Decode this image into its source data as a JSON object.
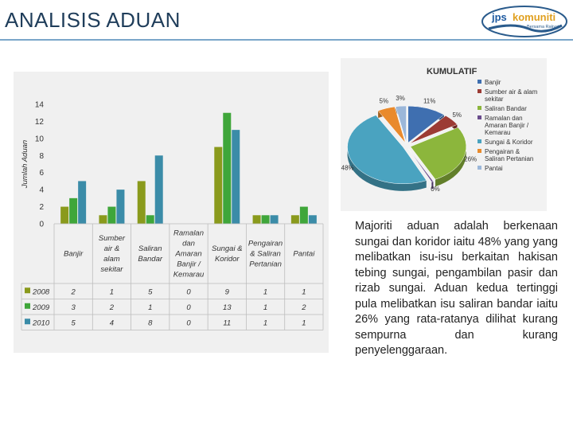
{
  "slide": {
    "title": "ANALISIS ADUAN",
    "logo_text_a": "jps",
    "logo_text_b": "komuniti",
    "logo_subtitle": "Bersama Rakyat",
    "paragraph": "Majoriti aduan adalah berkenaan sungai dan koridor iaitu 48% yang yang melibatkan isu-isu berkaitan hakisan tebing sungai, pengambilan pasir dan rizab sungai. Aduan kedua tertinggi pula melibatkan isu saliran bandar iaitu 26% yang rata-ratanya dilihat kurang sempurna dan kurang penyelenggaraan."
  },
  "chart_data": [
    {
      "type": "bar",
      "ylabel": "Jumlah Aduan",
      "ylim": [
        0,
        14
      ],
      "yticks": [
        0,
        2,
        4,
        6,
        8,
        10,
        12,
        14
      ],
      "grid": false,
      "categories": [
        [
          "Banjir"
        ],
        [
          "Sumber",
          "air &",
          "alam",
          "sekitar"
        ],
        [
          "Saliran",
          "Bandar"
        ],
        [
          "Ramalan",
          "dan",
          "Amaran",
          "Banjir /",
          "Kemarau"
        ],
        [
          "Sungai &",
          "Koridor"
        ],
        [
          "Pengairan",
          "& Saliran",
          "Pertanian"
        ],
        [
          "Pantai"
        ]
      ],
      "series": [
        {
          "name": "2008",
          "color": "#8a9a1c",
          "values": [
            2,
            1,
            5,
            0,
            9,
            1,
            1
          ]
        },
        {
          "name": "2009",
          "color": "#3fa63a",
          "values": [
            3,
            2,
            1,
            0,
            13,
            1,
            2
          ]
        },
        {
          "name": "2010",
          "color": "#3b8ca8",
          "values": [
            5,
            4,
            8,
            0,
            11,
            1,
            1
          ]
        }
      ],
      "table_below": true
    },
    {
      "type": "pie",
      "title": "KUMULATIF",
      "legend_position": "right",
      "slices": [
        {
          "label": "Banjir",
          "value": 11,
          "pct_label": "11%",
          "color": "#3f6fb0"
        },
        {
          "label": "Sumber air & alam sekitar",
          "value": 5,
          "pct_label": "5%",
          "color": "#9c3b34"
        },
        {
          "label": "Saliran Bandar",
          "value": 26,
          "pct_label": "26%",
          "color": "#8cb63c"
        },
        {
          "label": "Ramalan dan Amaran Banjir / Kemarau",
          "value": 0.5,
          "pct_label": "0%",
          "color": "#6a4c8c"
        },
        {
          "label": "Sungai & Koridor",
          "value": 48,
          "pct_label": "48%",
          "color": "#4aa3c0"
        },
        {
          "label": "Pengairan & Saliran Pertanian",
          "value": 5,
          "pct_label": "5%",
          "color": "#e98a2c"
        },
        {
          "label": "Pantai",
          "value": 3,
          "pct_label": "3%",
          "color": "#9bb7d9"
        }
      ]
    }
  ]
}
